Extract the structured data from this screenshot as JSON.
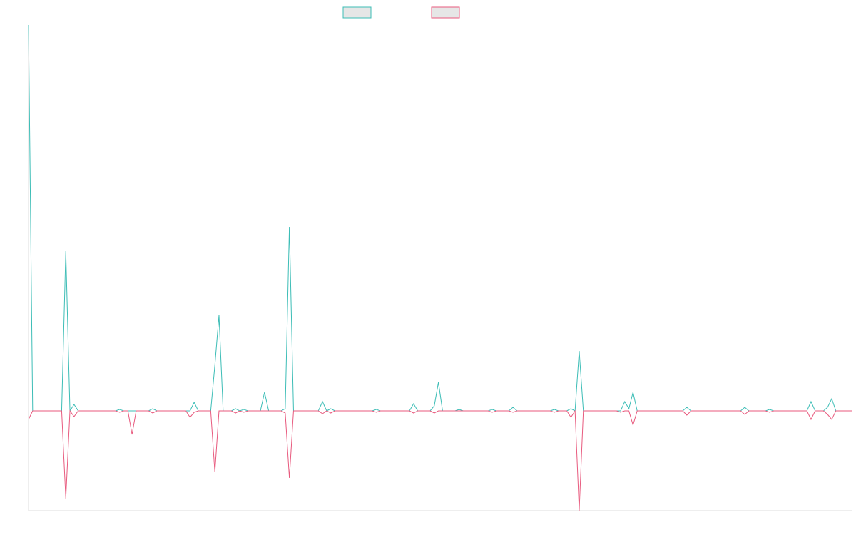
{
  "chart_data": {
    "type": "line",
    "legend": true,
    "ylim": [
      -140,
      541
    ],
    "series": [
      {
        "color": "#3cbdb6",
        "values": [
          541,
          0,
          0,
          0,
          0,
          0,
          0,
          0,
          0,
          224,
          0,
          9,
          0,
          0,
          0,
          0,
          0,
          0,
          0,
          0,
          0,
          0,
          2,
          0,
          0,
          0,
          0,
          0,
          0,
          0,
          3,
          0,
          0,
          0,
          0,
          0,
          0,
          0,
          0,
          0,
          12,
          0,
          0,
          0,
          0,
          64,
          134,
          0,
          0,
          0,
          3,
          0,
          2,
          0,
          0,
          0,
          0,
          26,
          0,
          0,
          0,
          0,
          3,
          258,
          0,
          0,
          0,
          0,
          0,
          0,
          0,
          13,
          0,
          3,
          0,
          0,
          0,
          0,
          0,
          0,
          0,
          0,
          0,
          0,
          2,
          0,
          0,
          0,
          0,
          0,
          0,
          0,
          0,
          10,
          0,
          0,
          0,
          0,
          7,
          40,
          0,
          0,
          0,
          0,
          2,
          0,
          0,
          0,
          0,
          0,
          0,
          0,
          2,
          0,
          0,
          0,
          0,
          5,
          0,
          0,
          0,
          0,
          0,
          0,
          0,
          0,
          0,
          2,
          0,
          0,
          0,
          3,
          0,
          84,
          0,
          0,
          0,
          0,
          0,
          0,
          0,
          0,
          0,
          0,
          13,
          3,
          26,
          0,
          0,
          0,
          0,
          0,
          0,
          0,
          0,
          0,
          0,
          0,
          0,
          5,
          0,
          0,
          0,
          0,
          0,
          0,
          0,
          0,
          0,
          0,
          0,
          0,
          0,
          5,
          0,
          0,
          0,
          0,
          0,
          2,
          0,
          0,
          0,
          0,
          0,
          0,
          0,
          0,
          0,
          13,
          0,
          0,
          0,
          5,
          17,
          0,
          0,
          0,
          0,
          0
        ]
      },
      {
        "color": "#e85a7e",
        "values": [
          -12,
          0,
          0,
          0,
          0,
          0,
          0,
          0,
          0,
          -123,
          0,
          -8,
          0,
          0,
          0,
          0,
          0,
          0,
          0,
          0,
          0,
          0,
          -2,
          0,
          0,
          -33,
          0,
          0,
          0,
          0,
          -3,
          0,
          0,
          0,
          0,
          0,
          0,
          0,
          0,
          -9,
          -2,
          0,
          0,
          0,
          0,
          -86,
          0,
          0,
          0,
          0,
          -3,
          0,
          -2,
          0,
          0,
          0,
          0,
          0,
          0,
          0,
          0,
          0,
          -3,
          -94,
          0,
          0,
          0,
          0,
          0,
          0,
          0,
          -4,
          0,
          -3,
          0,
          0,
          0,
          0,
          0,
          0,
          0,
          0,
          0,
          0,
          -2,
          0,
          0,
          0,
          0,
          0,
          0,
          0,
          0,
          -3,
          0,
          0,
          0,
          0,
          -3,
          0,
          0,
          0,
          0,
          0,
          0,
          0,
          0,
          0,
          0,
          0,
          0,
          0,
          -2,
          0,
          0,
          0,
          0,
          -2,
          0,
          0,
          0,
          0,
          0,
          0,
          0,
          0,
          0,
          -2,
          0,
          0,
          0,
          -9,
          0,
          -140,
          0,
          0,
          0,
          0,
          0,
          0,
          0,
          0,
          0,
          -2,
          0,
          0,
          -20,
          0,
          0,
          0,
          0,
          0,
          0,
          0,
          0,
          0,
          0,
          0,
          0,
          -6,
          0,
          0,
          0,
          0,
          0,
          0,
          0,
          0,
          0,
          0,
          0,
          0,
          0,
          -5,
          0,
          0,
          0,
          0,
          0,
          -2,
          0,
          0,
          0,
          0,
          0,
          0,
          0,
          0,
          0,
          -12,
          0,
          0,
          0,
          -5,
          -12,
          0,
          0,
          0,
          0,
          0
        ]
      }
    ]
  }
}
